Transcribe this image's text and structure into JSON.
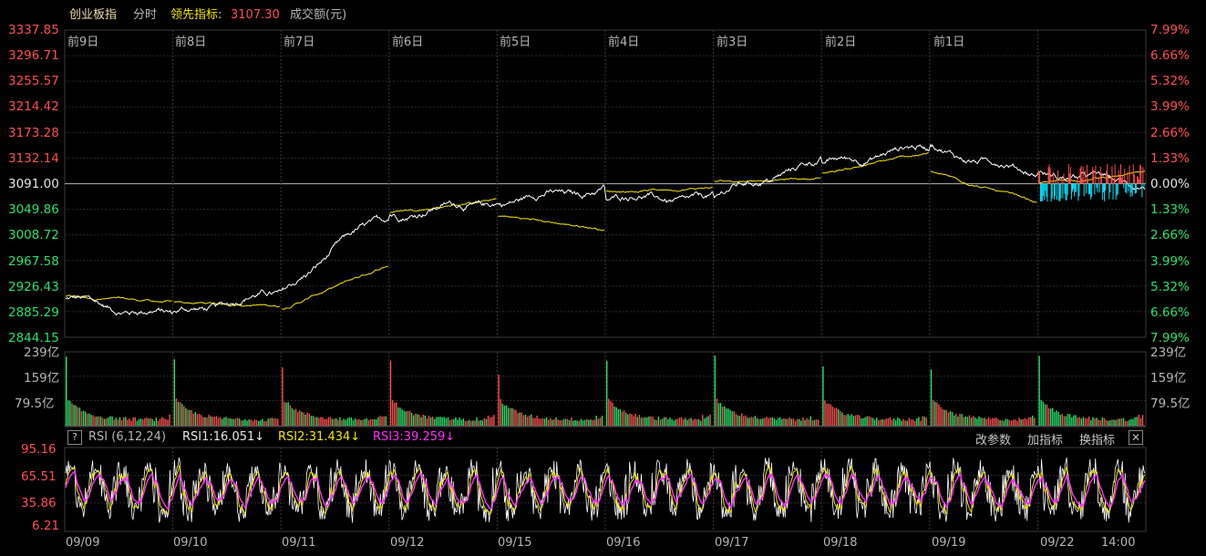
{
  "header": {
    "index_name": "创业板指",
    "period_label": "分时",
    "leading_label": "领先指标:",
    "leading_value": "3107.30",
    "volume_label": "成交额(元)"
  },
  "price_axis": {
    "left": [
      "3337.85",
      "3296.71",
      "3255.57",
      "3214.42",
      "3173.28",
      "3132.14",
      "3091.00",
      "3049.86",
      "3008.72",
      "2967.58",
      "2926.43",
      "2885.29",
      "2844.15"
    ],
    "right": [
      "7.99%",
      "6.66%",
      "5.32%",
      "3.99%",
      "2.66%",
      "1.33%",
      "0.00%",
      "1.33%",
      "2.66%",
      "3.99%",
      "5.32%",
      "6.66%",
      "7.99%"
    ]
  },
  "day_labels": [
    "前9日",
    "前8日",
    "前7日",
    "前6日",
    "前5日",
    "前4日",
    "前3日",
    "前2日",
    "前1日"
  ],
  "volume_axis": {
    "labels": [
      "239亿",
      "159亿",
      "79.5亿"
    ]
  },
  "rsi": {
    "title": "RSI (6,12,24)",
    "rsi1": "RSI1:16.051↓",
    "rsi2": "RSI2:31.434↓",
    "rsi3": "RSI3:39.259↓",
    "axis": [
      "95.16",
      "65.51",
      "35.86",
      "6.21"
    ],
    "buttons": [
      "改参数",
      "加指标",
      "换指标"
    ],
    "help": "?",
    "close": "✕"
  },
  "date_labels": [
    "09/09",
    "09/10",
    "09/11",
    "09/12",
    "09/15",
    "09/16",
    "09/17",
    "09/18",
    "09/19",
    "09/22",
    "14:00"
  ],
  "colors": {
    "up": "#ff4f4f",
    "down": "#28e26c",
    "price_line": "#ffffff",
    "avg_line": "#f2e600",
    "rsi3_line": "#ff30ff",
    "intraday_down": "#00e5ff",
    "grid": "#2a2a2a"
  },
  "chart_data": {
    "type": "line",
    "title": "创业板指 分时",
    "y_range": [
      2844.15,
      3337.85
    ],
    "base_value": 3091.0,
    "days": [
      "09/09",
      "09/10",
      "09/11",
      "09/12",
      "09/15",
      "09/16",
      "09/17",
      "09/18",
      "09/19",
      "09/22"
    ],
    "series": [
      {
        "name": "创业板指",
        "close_approx": [
          2880,
          2915,
          3040,
          3062,
          3082,
          3065,
          3125,
          3150,
          3110,
          3091
        ]
      },
      {
        "name": "领先指标",
        "close_approx": [
          2900,
          2895,
          2960,
          3065,
          3018,
          3085,
          3100,
          3140,
          3060,
          3107.3
        ]
      }
    ],
    "volume_ylim": [
      0,
      239
    ],
    "rsi_ylim": [
      6.21,
      95.16
    ],
    "rsi_latest": {
      "RSI1": 16.051,
      "RSI2": 31.434,
      "RSI3": 39.259
    }
  }
}
